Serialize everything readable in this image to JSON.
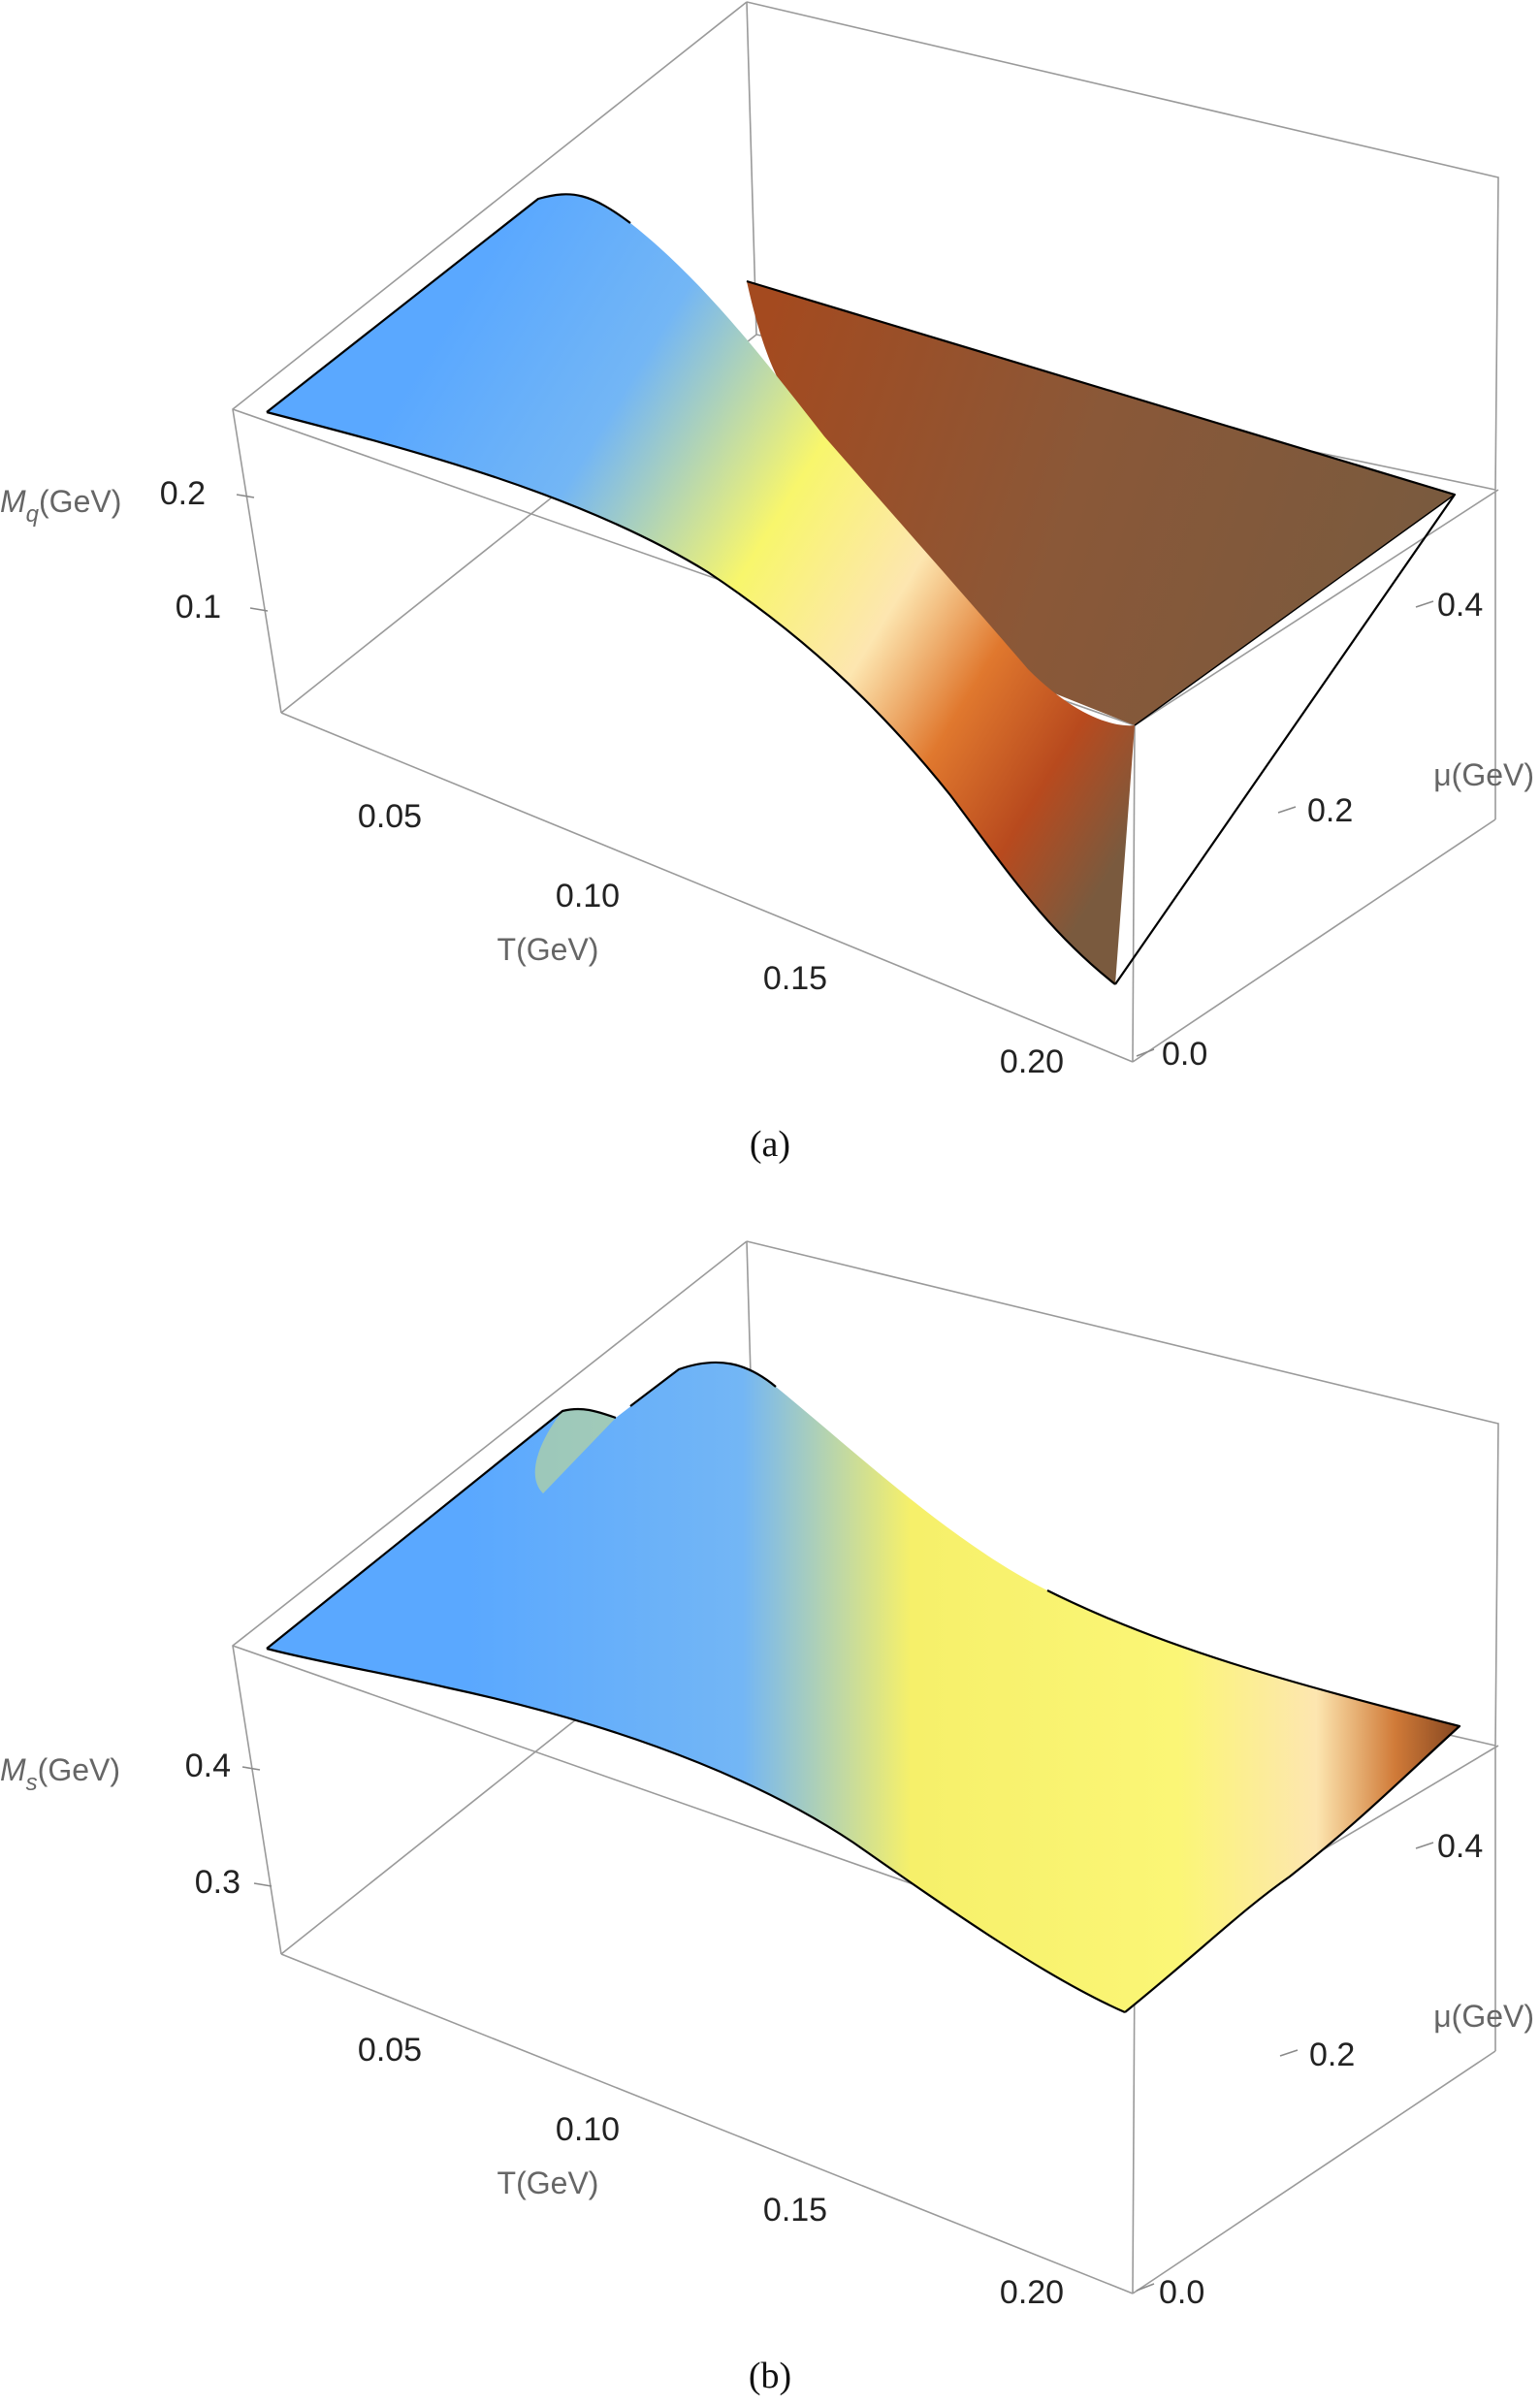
{
  "chart_data": [
    {
      "type": "surface3d",
      "caption": "(a)",
      "xlabel": "T(GeV)",
      "ylabel": "μ(GeV)",
      "zlabel_main": "M",
      "zlabel_sub": "q",
      "zlabel_unit": "(GeV)",
      "xlim": [
        0.0,
        0.21
      ],
      "ylim": [
        0.0,
        0.5
      ],
      "zlim": [
        0.0,
        0.27
      ],
      "x_ticks": [
        "0.05",
        "0.10",
        "0.15",
        "0.20"
      ],
      "y_ticks": [
        "0.0",
        "0.2",
        "0.4"
      ],
      "z_ticks": [
        "0.1",
        "0.2"
      ],
      "x_tick_values": [
        0.05,
        0.1,
        0.15,
        0.2
      ],
      "y_tick_values": [
        0.0,
        0.2,
        0.4
      ],
      "z_tick_values": [
        0.1,
        0.2
      ],
      "surface": {
        "T": [
          0.0,
          0.03,
          0.06,
          0.08,
          0.1,
          0.12,
          0.14,
          0.16,
          0.18,
          0.2,
          0.21
        ],
        "mu": [
          0.0,
          0.1,
          0.2,
          0.3,
          0.4,
          0.5
        ],
        "Mq": [
          [
            0.25,
            0.25,
            0.25,
            0.25,
            0.25,
            0.25
          ],
          [
            0.25,
            0.25,
            0.25,
            0.25,
            0.24,
            0.23
          ],
          [
            0.24,
            0.24,
            0.23,
            0.22,
            0.2,
            0.17
          ],
          [
            0.23,
            0.22,
            0.21,
            0.18,
            0.13,
            0.05
          ],
          [
            0.21,
            0.2,
            0.17,
            0.12,
            0.04,
            0.01
          ],
          [
            0.17,
            0.16,
            0.12,
            0.06,
            0.01,
            0.01
          ],
          [
            0.12,
            0.11,
            0.07,
            0.02,
            0.01,
            0.01
          ],
          [
            0.07,
            0.06,
            0.03,
            0.01,
            0.01,
            0.01
          ],
          [
            0.04,
            0.03,
            0.02,
            0.01,
            0.01,
            0.01
          ],
          [
            0.02,
            0.02,
            0.01,
            0.01,
            0.01,
            0.01
          ],
          [
            0.01,
            0.01,
            0.01,
            0.01,
            0.01,
            0.01
          ]
        ]
      },
      "colors": [
        "#64aefc",
        "#f9f66a",
        "#fde1a8",
        "#c54c1e",
        "#7a5a3e"
      ]
    },
    {
      "type": "surface3d",
      "caption": "(b)",
      "xlabel": "T(GeV)",
      "ylabel": "μ(GeV)",
      "zlabel_main": "M",
      "zlabel_sub": "s",
      "zlabel_unit": "(GeV)",
      "xlim": [
        0.0,
        0.21
      ],
      "ylim": [
        0.0,
        0.5
      ],
      "zlim": [
        0.22,
        0.48
      ],
      "x_ticks": [
        "0.05",
        "0.10",
        "0.15",
        "0.20"
      ],
      "y_ticks": [
        "0.0",
        "0.2",
        "0.4"
      ],
      "z_ticks": [
        "0.3",
        "0.4"
      ],
      "x_tick_values": [
        0.05,
        0.1,
        0.15,
        0.2
      ],
      "y_tick_values": [
        0.0,
        0.2,
        0.4
      ],
      "z_tick_values": [
        0.3,
        0.4
      ],
      "surface": {
        "T": [
          0.0,
          0.03,
          0.06,
          0.08,
          0.1,
          0.12,
          0.14,
          0.16,
          0.18,
          0.2,
          0.21
        ],
        "mu": [
          0.0,
          0.1,
          0.2,
          0.3,
          0.4,
          0.5
        ],
        "Ms": [
          [
            0.46,
            0.46,
            0.46,
            0.46,
            0.46,
            0.46
          ],
          [
            0.46,
            0.46,
            0.46,
            0.46,
            0.46,
            0.45
          ],
          [
            0.45,
            0.45,
            0.45,
            0.45,
            0.45,
            0.44
          ],
          [
            0.44,
            0.44,
            0.44,
            0.44,
            0.43,
            0.42
          ],
          [
            0.43,
            0.43,
            0.43,
            0.42,
            0.4,
            0.38
          ],
          [
            0.41,
            0.41,
            0.4,
            0.39,
            0.37,
            0.35
          ],
          [
            0.39,
            0.39,
            0.38,
            0.37,
            0.35,
            0.34
          ],
          [
            0.37,
            0.37,
            0.36,
            0.35,
            0.34,
            0.33
          ],
          [
            0.35,
            0.35,
            0.35,
            0.34,
            0.33,
            0.33
          ],
          [
            0.34,
            0.34,
            0.34,
            0.33,
            0.33,
            0.32
          ],
          [
            0.34,
            0.34,
            0.33,
            0.33,
            0.33,
            0.32
          ]
        ]
      },
      "colors": [
        "#64aefc",
        "#f9f66a",
        "#fde1a8",
        "#b5541c",
        "#7a4a2e"
      ]
    }
  ]
}
